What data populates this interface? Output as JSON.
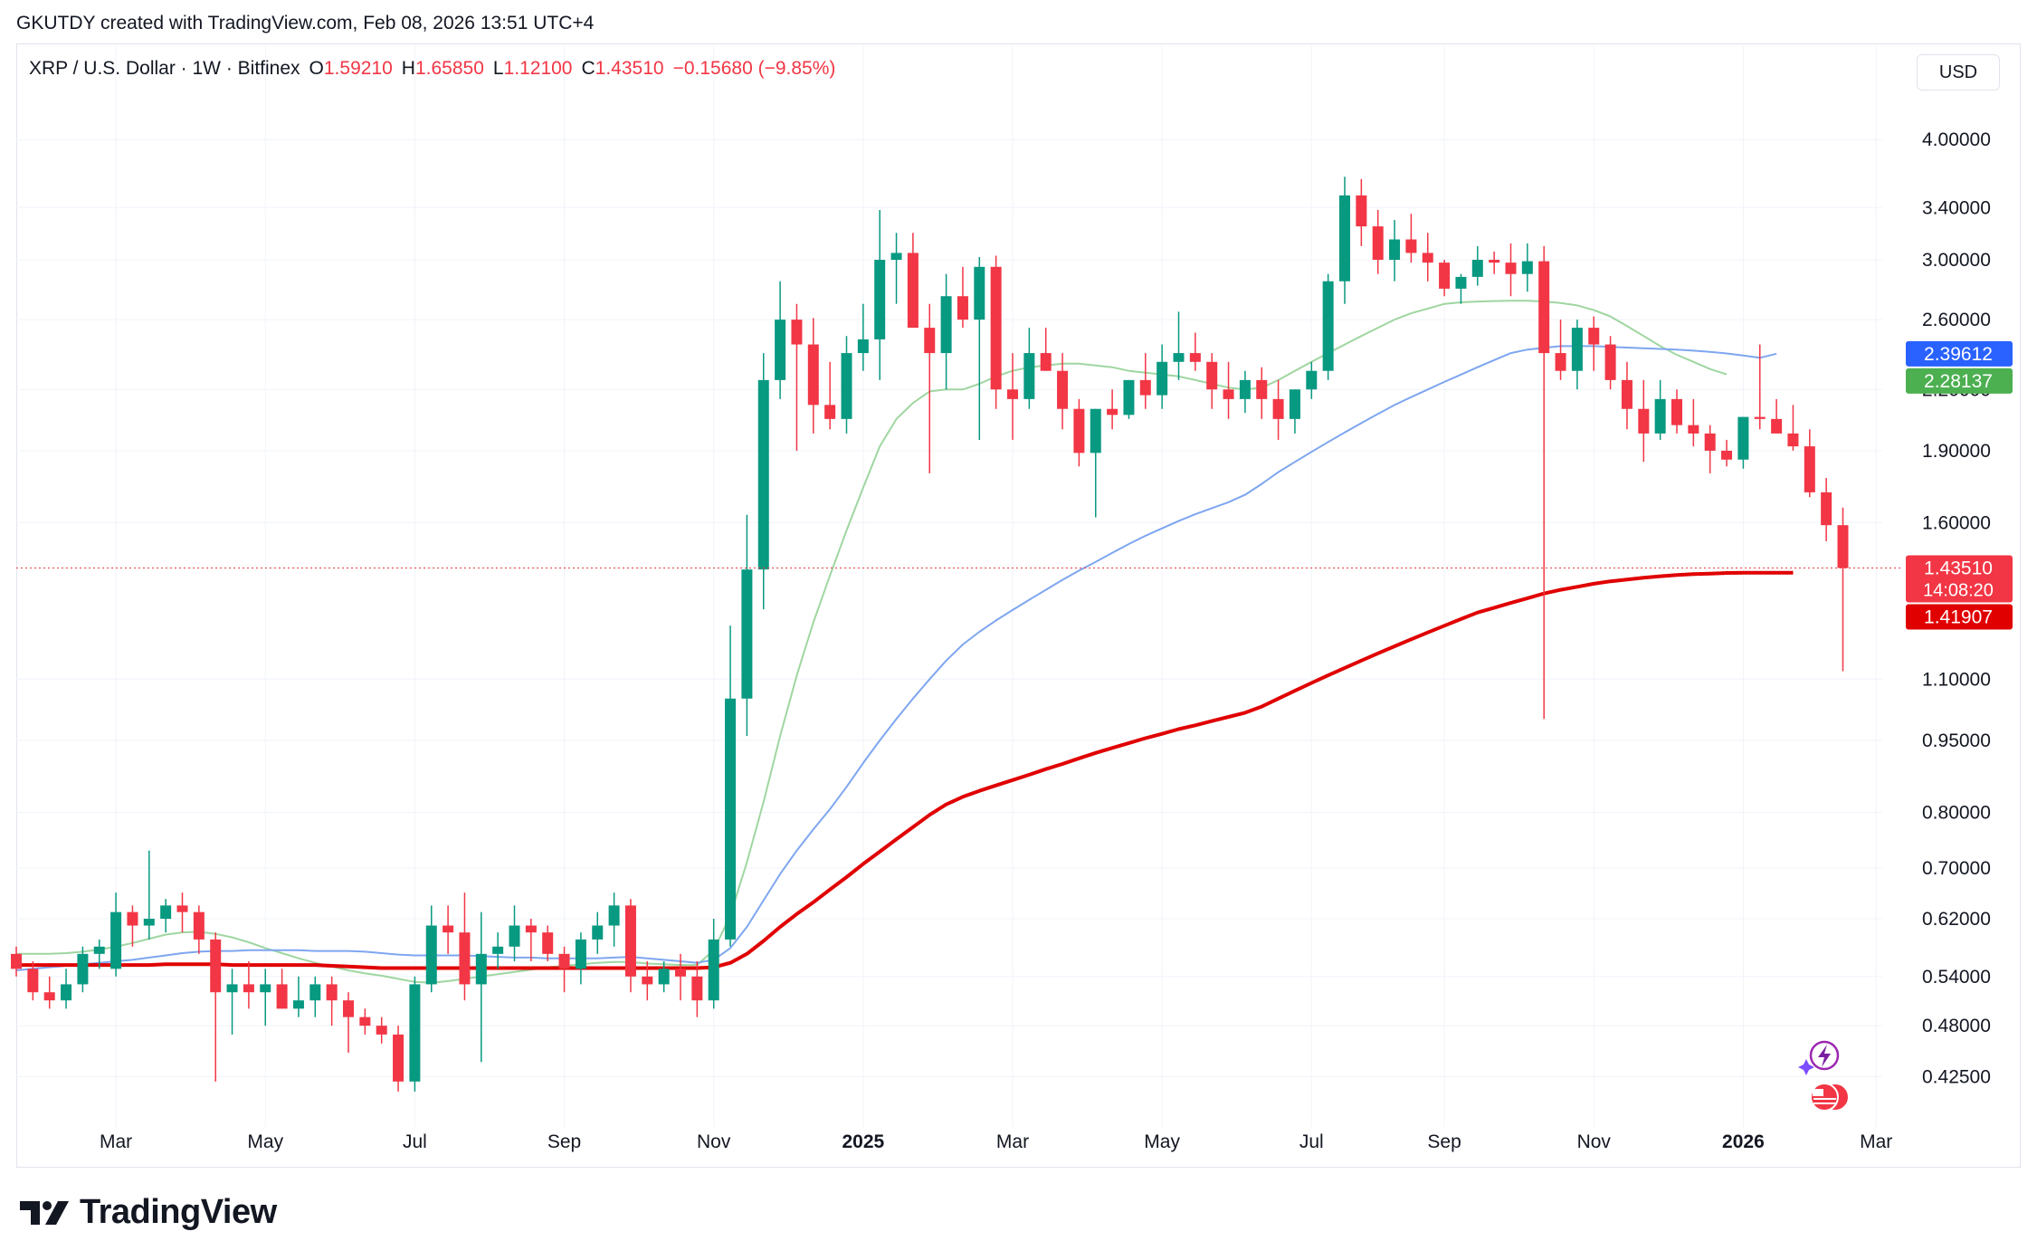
{
  "header": {
    "text": "GKUTDY created with TradingView.com, Feb 08, 2026 13:51 UTC+4"
  },
  "legend": {
    "symbol": "XRP / U.S. Dollar · 1W · Bitfinex",
    "o_label": "O",
    "o_value": "1.59210",
    "h_label": "H",
    "h_value": "1.65850",
    "l_label": "L",
    "l_value": "1.12100",
    "c_label": "C",
    "c_value": "1.43510",
    "change": "−0.15680 (−9.85%)"
  },
  "currency_button": "USD",
  "brand": "TradingView",
  "colors": {
    "up": "#089981",
    "down": "#f23645",
    "ma_long": "#e00000",
    "ma_mid": "#7ea6f0",
    "ma_short": "#9fd6a0",
    "badge_blue": "#2962ff",
    "badge_green": "#4caf50"
  },
  "chart_data": {
    "type": "candlestick",
    "scale": "log",
    "ylim": [
      0.385,
      4.45
    ],
    "y_ticks": [
      "4.00000",
      "3.40000",
      "3.00000",
      "2.60000",
      "2.20000",
      "1.90000",
      "1.60000",
      "1.10000",
      "0.95000",
      "0.80000",
      "0.70000",
      "0.62000",
      "0.54000",
      "0.48000",
      "0.42500"
    ],
    "x_ticks": [
      {
        "label": "Mar",
        "index": 6,
        "bold": false
      },
      {
        "label": "May",
        "index": 15,
        "bold": false
      },
      {
        "label": "Jul",
        "index": 24,
        "bold": false
      },
      {
        "label": "Sep",
        "index": 33,
        "bold": false
      },
      {
        "label": "Nov",
        "index": 42,
        "bold": false
      },
      {
        "label": "2025",
        "index": 51,
        "bold": true
      },
      {
        "label": "Mar",
        "index": 60,
        "bold": false
      },
      {
        "label": "May",
        "index": 69,
        "bold": false
      },
      {
        "label": "Jul",
        "index": 78,
        "bold": false
      },
      {
        "label": "Sep",
        "index": 86,
        "bold": false
      },
      {
        "label": "Nov",
        "index": 95,
        "bold": false
      },
      {
        "label": "2026",
        "index": 104,
        "bold": true
      },
      {
        "label": "Mar",
        "index": 112,
        "bold": false
      }
    ],
    "ohlc": [
      [
        0.57,
        0.58,
        0.54,
        0.55
      ],
      [
        0.55,
        0.56,
        0.51,
        0.52
      ],
      [
        0.52,
        0.54,
        0.5,
        0.51
      ],
      [
        0.51,
        0.55,
        0.5,
        0.53
      ],
      [
        0.53,
        0.58,
        0.52,
        0.57
      ],
      [
        0.57,
        0.59,
        0.55,
        0.58
      ],
      [
        0.55,
        0.66,
        0.54,
        0.63
      ],
      [
        0.63,
        0.64,
        0.58,
        0.61
      ],
      [
        0.61,
        0.73,
        0.59,
        0.62
      ],
      [
        0.62,
        0.65,
        0.6,
        0.64
      ],
      [
        0.64,
        0.66,
        0.6,
        0.63
      ],
      [
        0.63,
        0.64,
        0.57,
        0.59
      ],
      [
        0.59,
        0.6,
        0.42,
        0.52
      ],
      [
        0.52,
        0.55,
        0.47,
        0.53
      ],
      [
        0.53,
        0.56,
        0.5,
        0.52
      ],
      [
        0.52,
        0.55,
        0.48,
        0.53
      ],
      [
        0.53,
        0.55,
        0.5,
        0.5
      ],
      [
        0.5,
        0.54,
        0.49,
        0.51
      ],
      [
        0.51,
        0.54,
        0.49,
        0.53
      ],
      [
        0.53,
        0.54,
        0.48,
        0.51
      ],
      [
        0.51,
        0.52,
        0.45,
        0.49
      ],
      [
        0.49,
        0.5,
        0.47,
        0.48
      ],
      [
        0.48,
        0.49,
        0.46,
        0.47
      ],
      [
        0.47,
        0.48,
        0.41,
        0.42
      ],
      [
        0.42,
        0.54,
        0.41,
        0.53
      ],
      [
        0.53,
        0.64,
        0.52,
        0.61
      ],
      [
        0.61,
        0.64,
        0.57,
        0.6
      ],
      [
        0.6,
        0.66,
        0.51,
        0.53
      ],
      [
        0.53,
        0.63,
        0.44,
        0.57
      ],
      [
        0.57,
        0.6,
        0.55,
        0.58
      ],
      [
        0.58,
        0.64,
        0.56,
        0.61
      ],
      [
        0.61,
        0.62,
        0.56,
        0.6
      ],
      [
        0.6,
        0.61,
        0.56,
        0.57
      ],
      [
        0.57,
        0.58,
        0.52,
        0.55
      ],
      [
        0.55,
        0.6,
        0.53,
        0.59
      ],
      [
        0.59,
        0.63,
        0.57,
        0.61
      ],
      [
        0.61,
        0.66,
        0.58,
        0.64
      ],
      [
        0.64,
        0.65,
        0.52,
        0.54
      ],
      [
        0.54,
        0.56,
        0.51,
        0.53
      ],
      [
        0.53,
        0.56,
        0.52,
        0.55
      ],
      [
        0.55,
        0.57,
        0.51,
        0.54
      ],
      [
        0.54,
        0.56,
        0.49,
        0.51
      ],
      [
        0.51,
        0.62,
        0.5,
        0.59
      ],
      [
        0.59,
        1.25,
        0.58,
        1.05
      ],
      [
        1.05,
        1.63,
        0.96,
        1.43
      ],
      [
        1.43,
        2.4,
        1.3,
        2.25
      ],
      [
        2.25,
        2.85,
        2.15,
        2.6
      ],
      [
        2.6,
        2.7,
        1.9,
        2.45
      ],
      [
        2.45,
        2.61,
        1.98,
        2.12
      ],
      [
        2.12,
        2.35,
        2.0,
        2.05
      ],
      [
        2.05,
        2.5,
        1.98,
        2.4
      ],
      [
        2.4,
        2.7,
        2.3,
        2.48
      ],
      [
        2.48,
        3.38,
        2.25,
        3.0
      ],
      [
        3.0,
        3.2,
        2.7,
        3.05
      ],
      [
        3.05,
        3.2,
        2.55,
        2.55
      ],
      [
        2.55,
        2.7,
        1.8,
        2.4
      ],
      [
        2.4,
        2.9,
        2.2,
        2.75
      ],
      [
        2.75,
        2.95,
        2.55,
        2.6
      ],
      [
        2.6,
        3.02,
        1.95,
        2.95
      ],
      [
        2.95,
        3.03,
        2.1,
        2.2
      ],
      [
        2.2,
        2.4,
        1.95,
        2.15
      ],
      [
        2.15,
        2.55,
        2.1,
        2.4
      ],
      [
        2.4,
        2.55,
        2.3,
        2.3
      ],
      [
        2.3,
        2.4,
        2.0,
        2.1
      ],
      [
        2.1,
        2.15,
        1.83,
        1.89
      ],
      [
        1.89,
        2.1,
        1.62,
        2.1
      ],
      [
        2.1,
        2.2,
        2.0,
        2.07
      ],
      [
        2.07,
        2.25,
        2.05,
        2.25
      ],
      [
        2.25,
        2.4,
        2.1,
        2.17
      ],
      [
        2.17,
        2.45,
        2.1,
        2.35
      ],
      [
        2.35,
        2.65,
        2.25,
        2.4
      ],
      [
        2.4,
        2.52,
        2.3,
        2.35
      ],
      [
        2.35,
        2.4,
        2.1,
        2.2
      ],
      [
        2.2,
        2.35,
        2.05,
        2.15
      ],
      [
        2.15,
        2.3,
        2.08,
        2.25
      ],
      [
        2.25,
        2.32,
        2.05,
        2.15
      ],
      [
        2.15,
        2.25,
        1.95,
        2.05
      ],
      [
        2.05,
        2.2,
        1.98,
        2.2
      ],
      [
        2.2,
        2.35,
        2.15,
        2.3
      ],
      [
        2.3,
        2.9,
        2.25,
        2.85
      ],
      [
        2.85,
        3.66,
        2.7,
        3.5
      ],
      [
        3.5,
        3.64,
        3.1,
        3.25
      ],
      [
        3.25,
        3.38,
        2.9,
        3.0
      ],
      [
        3.0,
        3.3,
        2.85,
        3.15
      ],
      [
        3.15,
        3.35,
        2.98,
        3.05
      ],
      [
        3.05,
        3.2,
        2.85,
        2.98
      ],
      [
        2.98,
        3.0,
        2.75,
        2.8
      ],
      [
        2.8,
        2.9,
        2.7,
        2.88
      ],
      [
        2.88,
        3.1,
        2.82,
        3.0
      ],
      [
        3.0,
        3.06,
        2.9,
        2.98
      ],
      [
        2.98,
        3.12,
        2.75,
        2.9
      ],
      [
        2.9,
        3.12,
        2.78,
        2.99
      ],
      [
        2.99,
        3.1,
        1.0,
        2.4
      ],
      [
        2.4,
        2.6,
        2.25,
        2.3
      ],
      [
        2.3,
        2.6,
        2.2,
        2.55
      ],
      [
        2.55,
        2.62,
        2.3,
        2.45
      ],
      [
        2.45,
        2.5,
        2.2,
        2.25
      ],
      [
        2.25,
        2.35,
        2.0,
        2.1
      ],
      [
        2.1,
        2.25,
        1.85,
        1.98
      ],
      [
        1.98,
        2.25,
        1.95,
        2.15
      ],
      [
        2.15,
        2.2,
        1.98,
        2.02
      ],
      [
        2.02,
        2.15,
        1.92,
        1.98
      ],
      [
        1.98,
        2.02,
        1.8,
        1.9
      ],
      [
        1.9,
        1.95,
        1.83,
        1.86
      ],
      [
        1.86,
        2.06,
        1.82,
        2.06
      ],
      [
        2.06,
        2.45,
        2.0,
        2.05
      ],
      [
        2.05,
        2.15,
        1.98,
        1.98
      ],
      [
        1.98,
        2.12,
        1.9,
        1.92
      ],
      [
        1.92,
        2.0,
        1.7,
        1.72
      ],
      [
        1.72,
        1.78,
        1.53,
        1.59
      ],
      [
        1.59,
        1.6585,
        1.121,
        1.4351
      ]
    ],
    "ma_long": {
      "start": 0,
      "values": [
        0.555,
        0.555,
        0.555,
        0.555,
        0.555,
        0.555,
        0.555,
        0.555,
        0.555,
        0.556,
        0.556,
        0.556,
        0.556,
        0.555,
        0.555,
        0.555,
        0.555,
        0.555,
        0.555,
        0.554,
        0.553,
        0.552,
        0.551,
        0.551,
        0.551,
        0.551,
        0.551,
        0.551,
        0.551,
        0.551,
        0.551,
        0.551,
        0.551,
        0.551,
        0.551,
        0.551,
        0.551,
        0.551,
        0.551,
        0.551,
        0.551,
        0.551,
        0.552,
        0.558,
        0.57,
        0.588,
        0.608,
        0.627,
        0.645,
        0.665,
        0.685,
        0.707,
        0.728,
        0.75,
        0.772,
        0.795,
        0.815,
        0.83,
        0.842,
        0.853,
        0.864,
        0.875,
        0.887,
        0.898,
        0.91,
        0.922,
        0.933,
        0.944,
        0.955,
        0.965,
        0.976,
        0.985,
        0.995,
        1.005,
        1.015,
        1.03,
        1.05,
        1.07,
        1.09,
        1.11,
        1.13,
        1.15,
        1.17,
        1.19,
        1.21,
        1.23,
        1.25,
        1.27,
        1.29,
        1.305,
        1.32,
        1.335,
        1.35,
        1.362,
        1.372,
        1.382,
        1.39,
        1.396,
        1.402,
        1.407,
        1.411,
        1.414,
        1.416,
        1.418,
        1.4191,
        1.4191,
        1.4191,
        1.4191
      ]
    },
    "ma_mid": {
      "start": 0,
      "values": [
        0.548,
        0.55,
        0.552,
        0.554,
        0.556,
        0.558,
        0.56,
        0.562,
        0.565,
        0.568,
        0.571,
        0.573,
        0.574,
        0.574,
        0.575,
        0.575,
        0.575,
        0.575,
        0.574,
        0.574,
        0.574,
        0.573,
        0.571,
        0.569,
        0.568,
        0.568,
        0.568,
        0.568,
        0.567,
        0.566,
        0.565,
        0.565,
        0.564,
        0.564,
        0.564,
        0.564,
        0.565,
        0.566,
        0.564,
        0.562,
        0.56,
        0.558,
        0.562,
        0.578,
        0.608,
        0.648,
        0.69,
        0.73,
        0.768,
        0.806,
        0.85,
        0.9,
        0.95,
        1.0,
        1.05,
        1.1,
        1.15,
        1.195,
        1.232,
        1.266,
        1.298,
        1.33,
        1.362,
        1.395,
        1.426,
        1.456,
        1.488,
        1.52,
        1.55,
        1.578,
        1.606,
        1.632,
        1.656,
        1.68,
        1.71,
        1.755,
        1.805,
        1.85,
        1.895,
        1.94,
        1.985,
        2.03,
        2.075,
        2.12,
        2.16,
        2.2,
        2.24,
        2.28,
        2.32,
        2.36,
        2.4,
        2.42,
        2.43,
        2.44,
        2.44,
        2.44,
        2.436,
        2.432,
        2.428,
        2.424,
        2.42,
        2.414,
        2.407,
        2.398,
        2.386,
        2.373,
        2.396
      ]
    },
    "ma_short": {
      "start": 0,
      "values": [
        0.57,
        0.57,
        0.57,
        0.571,
        0.573,
        0.576,
        0.58,
        0.585,
        0.591,
        0.597,
        0.6,
        0.601,
        0.598,
        0.593,
        0.586,
        0.578,
        0.571,
        0.564,
        0.558,
        0.553,
        0.548,
        0.544,
        0.541,
        0.537,
        0.533,
        0.532,
        0.534,
        0.537,
        0.54,
        0.543,
        0.546,
        0.549,
        0.552,
        0.554,
        0.556,
        0.558,
        0.559,
        0.559,
        0.557,
        0.556,
        0.555,
        0.555,
        0.575,
        0.625,
        0.71,
        0.82,
        0.96,
        1.11,
        1.26,
        1.41,
        1.57,
        1.74,
        1.92,
        2.05,
        2.13,
        2.19,
        2.2,
        2.2,
        2.23,
        2.27,
        2.3,
        2.32,
        2.33,
        2.34,
        2.34,
        2.33,
        2.32,
        2.3,
        2.29,
        2.28,
        2.27,
        2.25,
        2.23,
        2.21,
        2.2,
        2.21,
        2.25,
        2.3,
        2.35,
        2.4,
        2.45,
        2.5,
        2.55,
        2.6,
        2.64,
        2.67,
        2.7,
        2.71,
        2.715,
        2.718,
        2.72,
        2.72,
        2.715,
        2.705,
        2.69,
        2.66,
        2.62,
        2.56,
        2.5,
        2.44,
        2.39,
        2.35,
        2.31,
        2.281
      ]
    },
    "current_price_line": 1.4351,
    "price_badges": [
      {
        "value": "2.39612",
        "level": 2.39612,
        "color": "#2962ff"
      },
      {
        "value": "2.28137",
        "level": 2.28137,
        "color": "#4caf50"
      },
      {
        "value": "1.43510",
        "level": 1.4351,
        "color": "#f23645",
        "sub": "14:08:20"
      },
      {
        "value": "1.41907",
        "level": 1.41907,
        "color": "#e00000"
      }
    ]
  }
}
